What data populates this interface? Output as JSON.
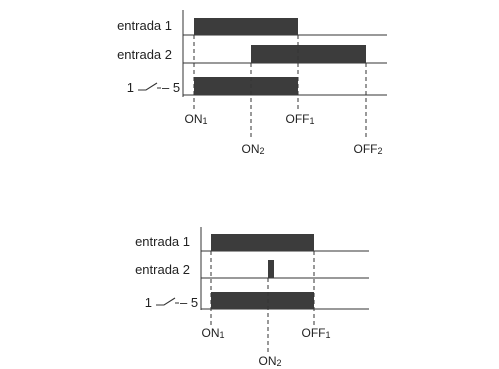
{
  "diagrams": [
    {
      "rows": [
        {
          "label": "entrada 1"
        },
        {
          "label": "entrada 2"
        },
        {
          "label": "1 — 5",
          "label_left": "1",
          "label_right": "– 5",
          "symbol": "switch-contact-icon"
        }
      ],
      "markers": [
        {
          "name": "on1",
          "main": "ON",
          "sub": "1"
        },
        {
          "name": "on2",
          "main": "ON",
          "sub": "2"
        },
        {
          "name": "off1",
          "main": "OFF",
          "sub": "1"
        },
        {
          "name": "off2",
          "main": "OFF",
          "sub": "2"
        }
      ]
    },
    {
      "rows": [
        {
          "label": "entrada 1"
        },
        {
          "label": "entrada 2"
        },
        {
          "label": "1 — 5",
          "label_left": "1",
          "label_right": "– 5",
          "symbol": "switch-contact-icon"
        }
      ],
      "markers": [
        {
          "name": "on1",
          "main": "ON",
          "sub": "1"
        },
        {
          "name": "on2",
          "main": "ON",
          "sub": "2"
        },
        {
          "name": "off1",
          "main": "OFF",
          "sub": "1"
        }
      ]
    }
  ]
}
